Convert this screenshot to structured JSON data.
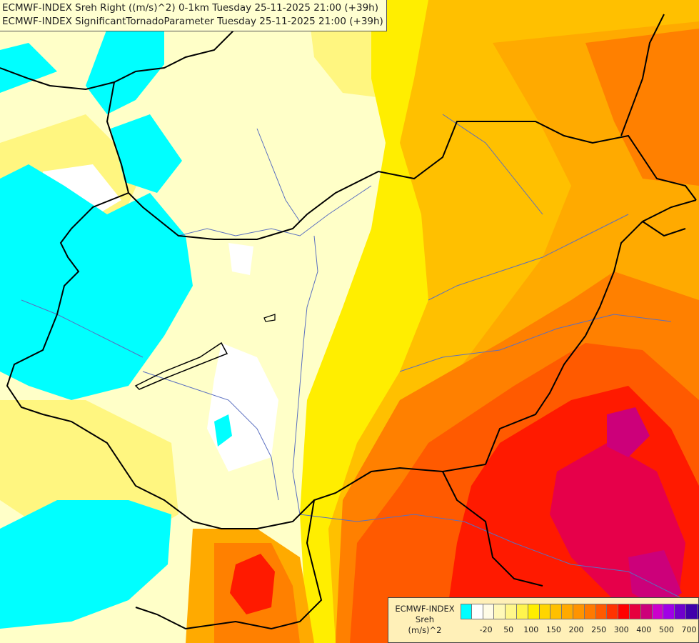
{
  "header": {
    "line1": "ECMWF-INDEX Sreh Right ((m/s)^2) 0-1km Tuesday 25-11-2025 21:00 (+39h)",
    "line2": "ECMWF-INDEX SignificantTornadoParameter Tuesday 25-11-2025 21:00 (+39h)"
  },
  "legend": {
    "title_line1": "ECMWF-INDEX",
    "title_line2": "Sreh",
    "title_line3": "(m/s)^2",
    "colors": [
      "#00ffff",
      "#ffffff",
      "#fffce6",
      "#fff9b8",
      "#fff78a",
      "#fff44d",
      "#ffee00",
      "#ffd500",
      "#ffc000",
      "#ffaa00",
      "#ff9400",
      "#ff7a00",
      "#ff5a00",
      "#ff3300",
      "#ff0000",
      "#e6003e",
      "#cc007a",
      "#cc00cc",
      "#a000e6",
      "#7000cc",
      "#4000aa",
      "#20008a",
      "#000080"
    ],
    "ticks": [
      {
        "label": "-20",
        "index": 1
      },
      {
        "label": "50",
        "index": 3
      },
      {
        "label": "100",
        "index": 5
      },
      {
        "label": "150",
        "index": 7
      },
      {
        "label": "200",
        "index": 9
      },
      {
        "label": "250",
        "index": 11
      },
      {
        "label": "300",
        "index": 13
      },
      {
        "label": "400",
        "index": 15
      },
      {
        "label": "500",
        "index": 17
      },
      {
        "label": "700",
        "index": 19
      }
    ]
  },
  "map_colors": {
    "cyan": "#00ffff",
    "white": "#ffffff",
    "pale_yellow": "#ffffc8",
    "light_yellow": "#fff680",
    "yellow": "#ffee00",
    "gold": "#ffc000",
    "orange": "#ffaa00",
    "dark_orange": "#ff8000",
    "orange_red": "#ff5a00",
    "red": "#ff1a00",
    "crimson": "#e6004a",
    "magenta": "#cc007a",
    "border": "#000000",
    "river": "#5a6fc0"
  }
}
